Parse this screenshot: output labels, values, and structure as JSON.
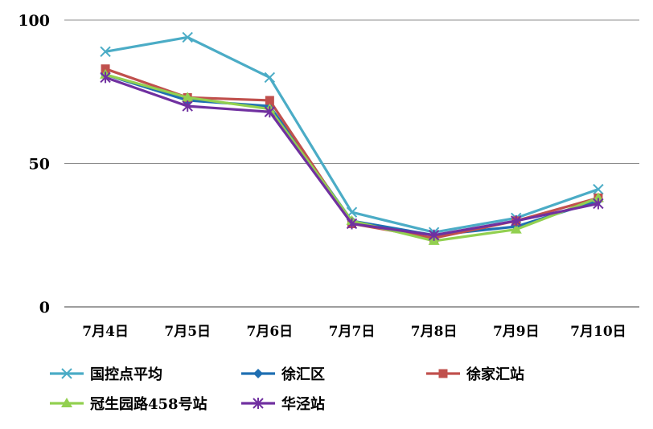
{
  "chart_data": {
    "type": "line",
    "categories": [
      "7月4日",
      "7月5日",
      "7月6日",
      "7月7日",
      "7月8日",
      "7月9日",
      "7月10日"
    ],
    "ylim": [
      0,
      100
    ],
    "yticks": [
      0,
      50,
      100
    ],
    "grid": true,
    "legend_position": "bottom",
    "series": [
      {
        "name": "国控点平均",
        "color": "#4BACC6",
        "marker": "asterisk",
        "values": [
          89,
          94,
          80,
          33,
          26,
          31,
          41
        ]
      },
      {
        "name": "徐汇区",
        "color": "#1F6FB2",
        "marker": "diamond",
        "values": [
          81,
          72,
          70,
          30,
          25,
          28,
          37
        ]
      },
      {
        "name": "徐家汇站",
        "color": "#C0504D",
        "marker": "square",
        "values": [
          83,
          73,
          72,
          29,
          24,
          30,
          38
        ]
      },
      {
        "name": "冠生园路458号站",
        "color": "#92D050",
        "marker": "triangle",
        "values": [
          81,
          73,
          69,
          30,
          23,
          27,
          38
        ]
      },
      {
        "name": "华泾站",
        "color": "#7030A0",
        "marker": "star",
        "values": [
          80,
          70,
          68,
          29,
          25,
          30,
          36
        ]
      }
    ]
  }
}
